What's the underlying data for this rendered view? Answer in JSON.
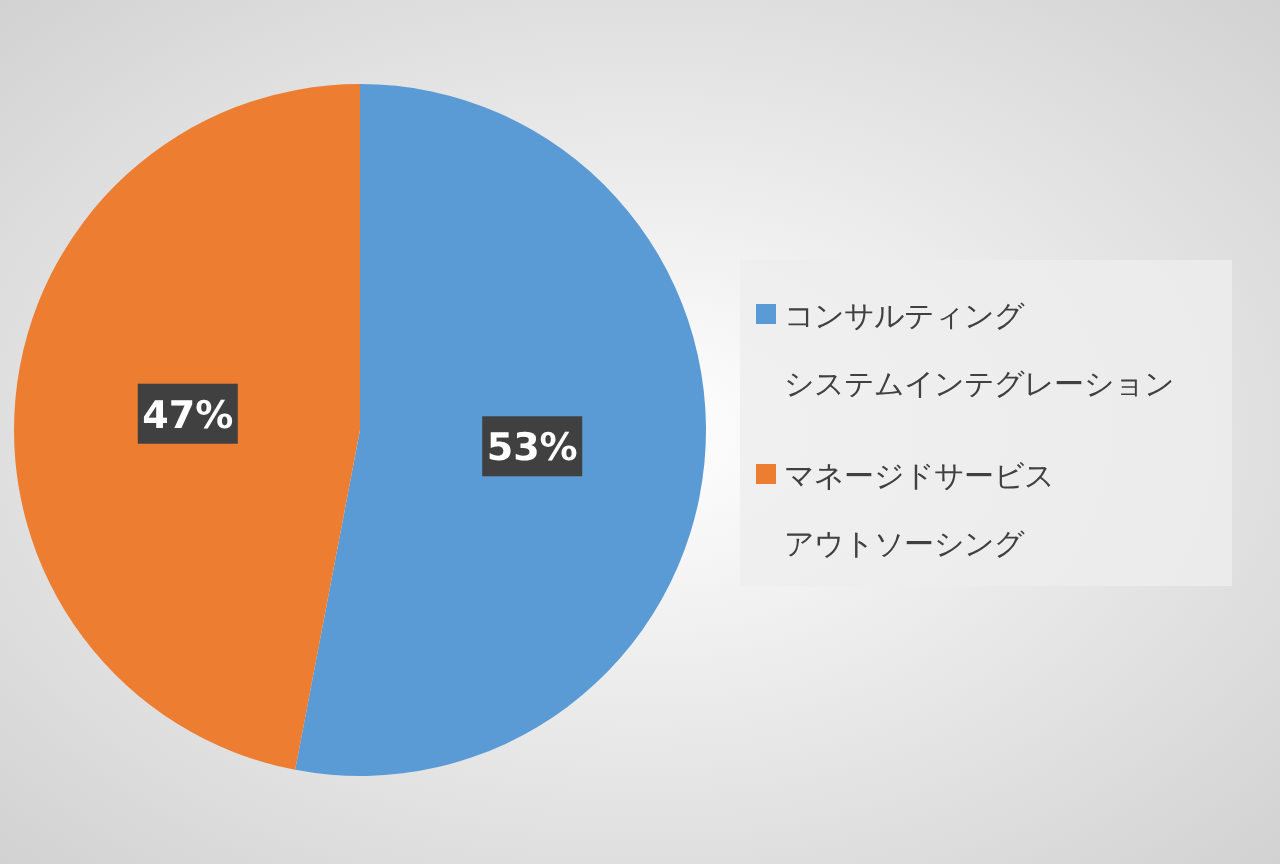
{
  "chart_data": {
    "type": "pie",
    "categories": [
      "コンサルティングシステムインテグレーション",
      "マネージドサービスアウトソーシング"
    ],
    "values": [
      53,
      47
    ],
    "colors": [
      "#5b9bd5",
      "#ed7d31"
    ],
    "value_labels": [
      "53%",
      "47%"
    ],
    "legend": "right"
  }
}
